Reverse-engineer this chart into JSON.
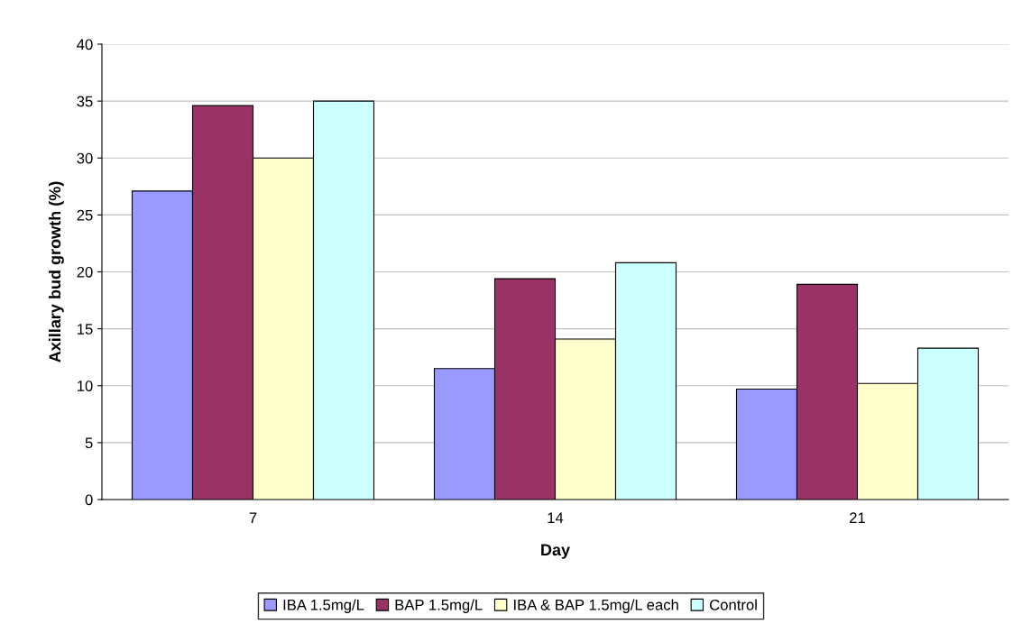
{
  "chart_data": {
    "type": "bar",
    "xlabel": "Day",
    "ylabel": "Axillary bud growth (%)",
    "categories": [
      "7",
      "14",
      "21"
    ],
    "series": [
      {
        "name": "IBA 1.5mg/L",
        "color": "#9999ff",
        "values": [
          27.1,
          11.5,
          9.7
        ]
      },
      {
        "name": "BAP 1.5mg/L",
        "color": "#993366",
        "values": [
          34.6,
          19.4,
          18.9
        ]
      },
      {
        "name": "IBA & BAP 1.5mg/L each",
        "color": "#ffffcc",
        "values": [
          30.0,
          14.1,
          10.2
        ]
      },
      {
        "name": "Control",
        "color": "#ccffff",
        "values": [
          35.0,
          20.8,
          13.3
        ]
      }
    ],
    "ylim": [
      0,
      40
    ],
    "yticks": [
      0,
      5,
      10,
      15,
      20,
      25,
      30,
      35,
      40
    ],
    "grid": "y",
    "legend": "bottom"
  }
}
